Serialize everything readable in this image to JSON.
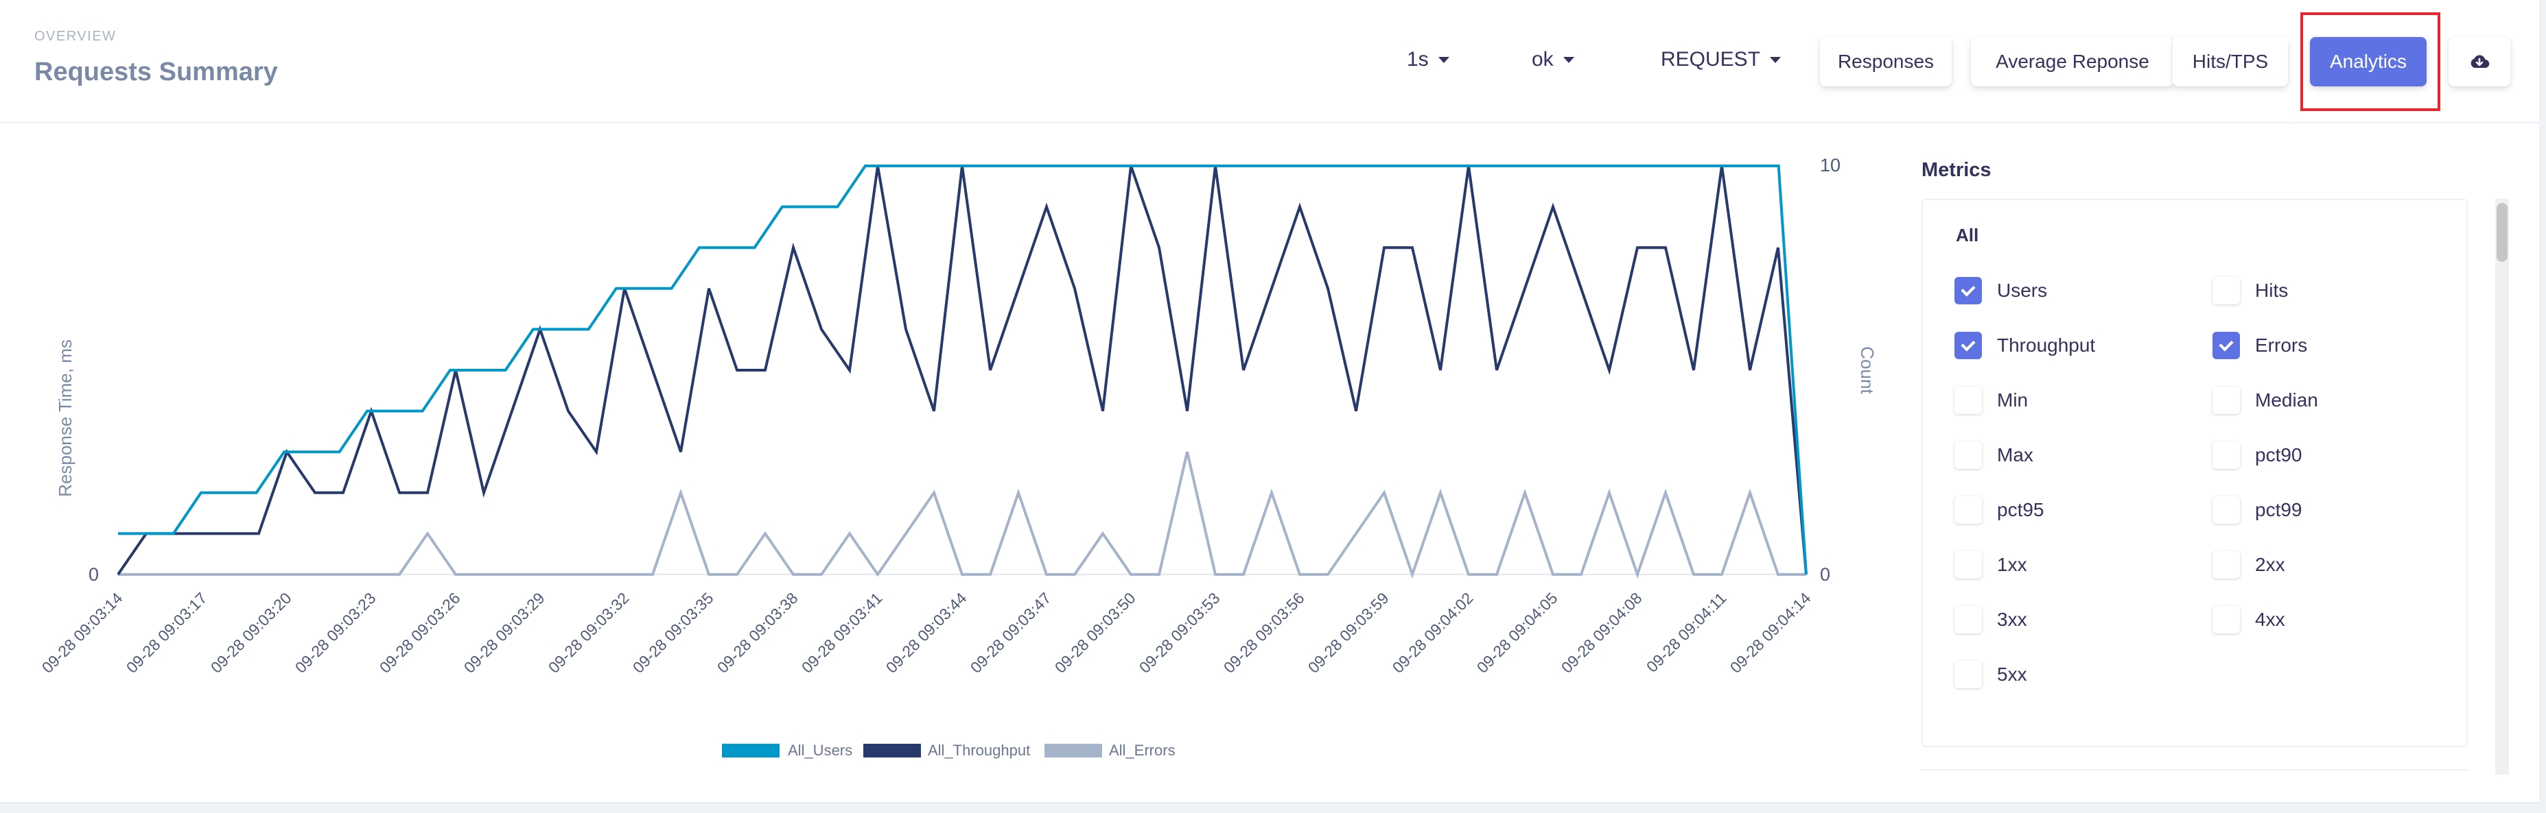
{
  "header": {
    "overline": "OVERVIEW",
    "title": "Requests Summary"
  },
  "dropdowns": [
    {
      "key": "interval",
      "value": "1s"
    },
    {
      "key": "status",
      "value": "ok"
    },
    {
      "key": "type",
      "value": "REQUEST"
    }
  ],
  "buttons": {
    "responses": "Responses",
    "average": "Average Reponse",
    "hits": "Hits/TPS",
    "analytics": "Analytics",
    "download_icon": "cloud-download-icon"
  },
  "colors": {
    "users": "#0097c9",
    "throughput": "#283a6b",
    "errors": "#a5b4cb",
    "accent": "#5e72e4",
    "highlight": "#e8262b"
  },
  "metrics": {
    "title": "Metrics",
    "all_label": "All",
    "items": [
      {
        "label": "Users",
        "checked": true
      },
      {
        "label": "Hits",
        "checked": false
      },
      {
        "label": "Throughput",
        "checked": true
      },
      {
        "label": "Errors",
        "checked": true
      },
      {
        "label": "Min",
        "checked": false
      },
      {
        "label": "Median",
        "checked": false
      },
      {
        "label": "Max",
        "checked": false
      },
      {
        "label": "pct90",
        "checked": false
      },
      {
        "label": "pct95",
        "checked": false
      },
      {
        "label": "pct99",
        "checked": false
      },
      {
        "label": "1xx",
        "checked": false
      },
      {
        "label": "2xx",
        "checked": false
      },
      {
        "label": "3xx",
        "checked": false
      },
      {
        "label": "4xx",
        "checked": false
      },
      {
        "label": "5xx",
        "checked": false
      }
    ]
  },
  "chart_data": {
    "type": "line",
    "y_left_label": "Response Time, ms",
    "y_right_label": "Count",
    "y_left_ticks": [
      "0"
    ],
    "y_right_ticks": [
      "0",
      "10"
    ],
    "ylim_right": [
      0,
      10
    ],
    "x_start": "09-28 09:03:14",
    "x_tick_labels": [
      "09-28 09:03:14",
      "09-28 09:03:17",
      "09-28 09:03:20",
      "09-28 09:03:23",
      "09-28 09:03:26",
      "09-28 09:03:29",
      "09-28 09:03:32",
      "09-28 09:03:35",
      "09-28 09:03:38",
      "09-28 09:03:41",
      "09-28 09:03:44",
      "09-28 09:03:47",
      "09-28 09:03:50",
      "09-28 09:03:53",
      "09-28 09:03:56",
      "09-28 09:03:59",
      "09-28 09:04:02",
      "09-28 09:04:05",
      "09-28 09:04:08",
      "09-28 09:04:11",
      "09-28 09:04:14"
    ],
    "legend_position": "bottom-center",
    "series": [
      {
        "name": "All_Users",
        "color": "#0097c9",
        "values": [
          1,
          1,
          1,
          2,
          2,
          2,
          3,
          3,
          3,
          4,
          4,
          4,
          5,
          5,
          5,
          6,
          6,
          6,
          7,
          7,
          7,
          8,
          8,
          8,
          9,
          9,
          9,
          10,
          10,
          10,
          10,
          10,
          10,
          10,
          10,
          10,
          10,
          10,
          10,
          10,
          10,
          10,
          10,
          10,
          10,
          10,
          10,
          10,
          10,
          10,
          10,
          10,
          10,
          10,
          10,
          10,
          10,
          10,
          10,
          10,
          10,
          0
        ]
      },
      {
        "name": "All_Throughput",
        "color": "#283a6b",
        "values": [
          0,
          1,
          1,
          1,
          1,
          1,
          3,
          2,
          2,
          4,
          2,
          2,
          5,
          2,
          4,
          6,
          4,
          3,
          7,
          5,
          3,
          7,
          5,
          5,
          8,
          6,
          5,
          10,
          6,
          4,
          10,
          5,
          7,
          9,
          7,
          4,
          10,
          8,
          4,
          10,
          5,
          7,
          9,
          7,
          4,
          8,
          8,
          5,
          10,
          5,
          7,
          9,
          7,
          5,
          8,
          8,
          5,
          10,
          5,
          8,
          0
        ]
      },
      {
        "name": "All_Errors",
        "color": "#a5b4cb",
        "values": [
          0,
          0,
          0,
          0,
          0,
          0,
          0,
          0,
          0,
          0,
          0,
          1,
          0,
          0,
          0,
          0,
          0,
          0,
          0,
          0,
          2,
          0,
          0,
          1,
          0,
          0,
          1,
          0,
          1,
          2,
          0,
          0,
          2,
          0,
          0,
          1,
          0,
          0,
          3,
          0,
          0,
          2,
          0,
          0,
          1,
          2,
          0,
          2,
          0,
          0,
          2,
          0,
          0,
          2,
          0,
          2,
          0,
          0,
          2,
          0,
          0
        ]
      }
    ]
  }
}
